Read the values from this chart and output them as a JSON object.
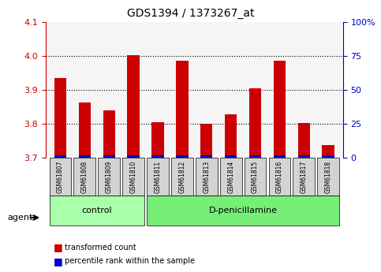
{
  "title": "GDS1394 / 1373267_at",
  "samples": [
    "GSM61807",
    "GSM61808",
    "GSM61809",
    "GSM61810",
    "GSM61811",
    "GSM61812",
    "GSM61813",
    "GSM61814",
    "GSM61815",
    "GSM61816",
    "GSM61817",
    "GSM61818"
  ],
  "red_values": [
    3.935,
    3.862,
    3.84,
    4.002,
    3.805,
    3.985,
    3.8,
    3.828,
    3.905,
    3.985,
    3.803,
    3.738
  ],
  "blue_values": [
    3.703,
    3.703,
    3.703,
    3.703,
    3.703,
    3.703,
    3.703,
    3.703,
    3.703,
    3.703,
    3.703,
    3.703
  ],
  "ylim_left": [
    3.7,
    4.1
  ],
  "ylim_right": [
    0,
    100
  ],
  "yticks_left": [
    3.7,
    3.8,
    3.9,
    4.0,
    4.1
  ],
  "yticks_right": [
    0,
    25,
    50,
    75,
    100
  ],
  "ytick_labels_right": [
    "0",
    "25",
    "50",
    "75",
    "100%"
  ],
  "groups": [
    {
      "label": "control",
      "start": 0,
      "end": 3,
      "color": "#ccffcc"
    },
    {
      "label": "D-penicillamine",
      "start": 4,
      "end": 11,
      "color": "#99ff99"
    }
  ],
  "group_bar_color": "#d3d3d3",
  "red_color": "#cc0000",
  "blue_color": "#0000cc",
  "bar_width": 0.5,
  "agent_label": "agent",
  "legend_red": "transformed count",
  "legend_blue": "percentile rank within the sample",
  "grid_color": "black",
  "grid_style": "dotted",
  "left_tick_color": "#cc0000",
  "right_tick_color": "#0000cc",
  "background_color": "#ffffff",
  "plot_bg_color": "#f5f5f5"
}
